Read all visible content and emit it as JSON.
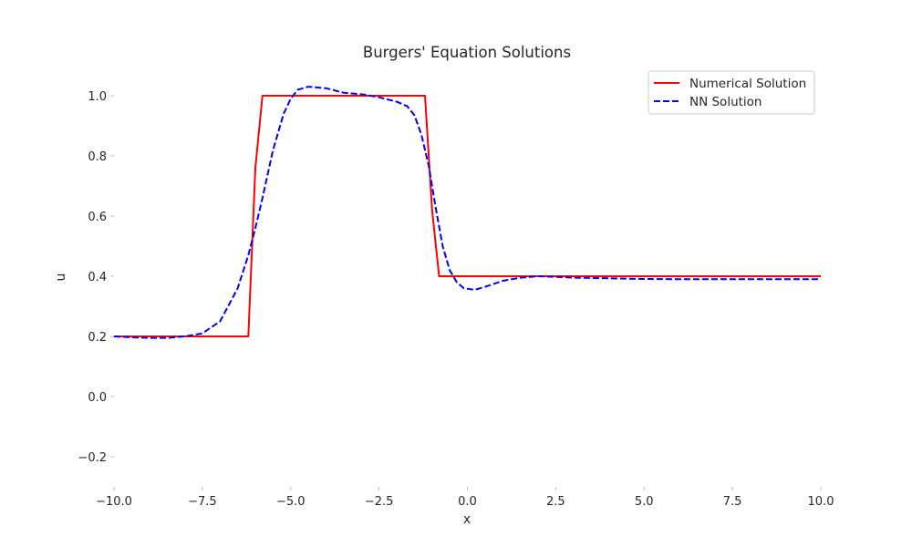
{
  "chart_data": {
    "type": "line",
    "title": "Burgers' Equation Solutions",
    "xlabel": "x",
    "ylabel": "u",
    "xlim": [
      -10,
      10
    ],
    "ylim": [
      -0.3,
      1.1
    ],
    "xticks": [
      -10,
      -7.5,
      -5,
      -2.5,
      0,
      2.5,
      5,
      7.5,
      10
    ],
    "xtick_labels": [
      "−10.0",
      "−7.5",
      "−5.0",
      "−2.5",
      "0.0",
      "2.5",
      "5.0",
      "7.5",
      "10.0"
    ],
    "yticks": [
      -0.2,
      0.0,
      0.2,
      0.4,
      0.6,
      0.8,
      1.0
    ],
    "ytick_labels": [
      "−0.2",
      "0.0",
      "0.2",
      "0.4",
      "0.6",
      "0.8",
      "1.0"
    ],
    "grid": false,
    "legend_position": "top-right",
    "series": [
      {
        "name": "Numerical Solution",
        "color": "#ff0000",
        "style": "solid",
        "x": [
          -10.0,
          -6.2,
          -6.0,
          -5.8,
          -1.2,
          -1.0,
          -0.8,
          10.0
        ],
        "y": [
          0.2,
          0.2,
          0.76,
          1.0,
          1.0,
          0.62,
          0.4,
          0.4
        ]
      },
      {
        "name": "NN Solution",
        "color": "#0000ff",
        "style": "dashed",
        "x": [
          -10.0,
          -9.5,
          -9.0,
          -8.5,
          -8.0,
          -7.5,
          -7.0,
          -6.5,
          -6.2,
          -6.0,
          -5.8,
          -5.5,
          -5.2,
          -5.0,
          -4.8,
          -4.5,
          -4.0,
          -3.5,
          -3.0,
          -2.5,
          -2.0,
          -1.7,
          -1.5,
          -1.3,
          -1.1,
          -0.9,
          -0.7,
          -0.5,
          -0.3,
          -0.1,
          0.2,
          0.5,
          1.0,
          1.5,
          2.0,
          2.5,
          3.0,
          4.0,
          5.0,
          6.0,
          7.0,
          8.0,
          9.0,
          10.0
        ],
        "y": [
          0.2,
          0.197,
          0.195,
          0.195,
          0.2,
          0.21,
          0.25,
          0.36,
          0.47,
          0.56,
          0.66,
          0.82,
          0.94,
          0.99,
          1.02,
          1.03,
          1.025,
          1.01,
          1.005,
          0.995,
          0.98,
          0.965,
          0.935,
          0.87,
          0.77,
          0.63,
          0.5,
          0.42,
          0.38,
          0.36,
          0.355,
          0.365,
          0.385,
          0.395,
          0.4,
          0.398,
          0.395,
          0.393,
          0.391,
          0.39,
          0.39,
          0.39,
          0.39,
          0.39
        ]
      }
    ]
  }
}
